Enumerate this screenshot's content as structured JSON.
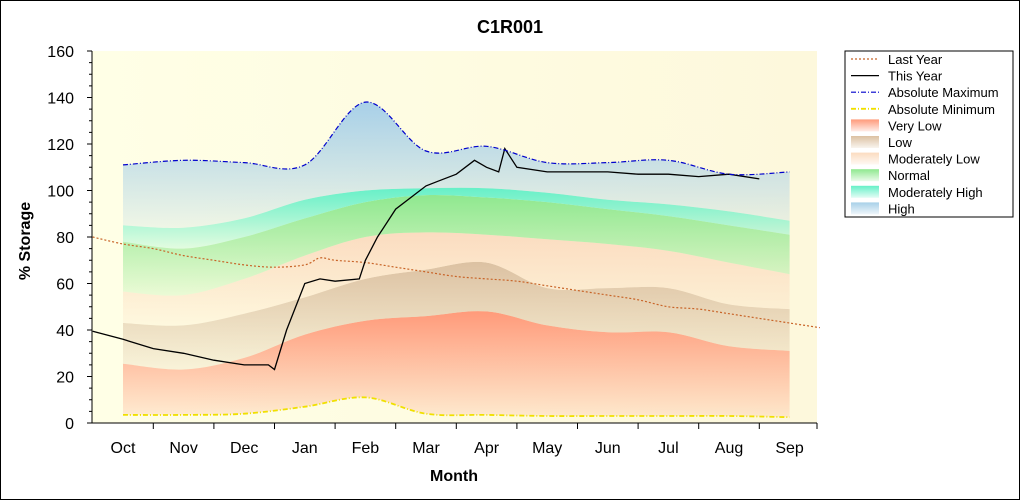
{
  "chart_data": {
    "type": "area",
    "title": "C1R001",
    "xlabel": "Month",
    "ylabel": "% Storage",
    "ylim": [
      0,
      160
    ],
    "yticks": [
      0,
      20,
      40,
      60,
      80,
      100,
      120,
      140,
      160
    ],
    "months": [
      "Oct",
      "Nov",
      "Dec",
      "Jan",
      "Feb",
      "Mar",
      "Apr",
      "May",
      "Jun",
      "Jul",
      "Aug",
      "Sep"
    ],
    "legend_position": "right",
    "bands": [
      {
        "name": "Very Low",
        "color": "#ff9a7a",
        "lower_key": "abs_min",
        "upper_key": "very_low_top"
      },
      {
        "name": "Low",
        "color": "#dcc1a2",
        "lower_key": "very_low_top",
        "upper_key": "low_top"
      },
      {
        "name": "Moderately Low",
        "color": "#fbdcc0",
        "lower_key": "low_top",
        "upper_key": "mod_low_top"
      },
      {
        "name": "Normal",
        "color": "#8fe88f",
        "lower_key": "mod_low_top",
        "upper_key": "normal_top"
      },
      {
        "name": "Moderately High",
        "color": "#66f0c8",
        "lower_key": "normal_top",
        "upper_key": "mod_high_top"
      },
      {
        "name": "High",
        "color": "#a8d0e8",
        "lower_key": "mod_high_top",
        "upper_key": "abs_max"
      }
    ],
    "band_x": [
      0,
      1,
      2,
      3,
      4,
      5,
      6,
      7,
      8,
      9,
      10,
      11
    ],
    "band_values": {
      "abs_min": [
        3.5,
        3.5,
        4,
        7,
        11,
        4,
        3.5,
        3,
        3,
        3,
        3,
        2.5
      ],
      "very_low_top": [
        25.5,
        23,
        28,
        38,
        44,
        46,
        48,
        42,
        39,
        39,
        33,
        31
      ],
      "low_top": [
        43,
        42,
        47,
        54,
        62,
        66,
        69,
        58,
        58,
        58,
        51,
        49
      ],
      "mod_low_top": [
        56.5,
        55,
        62,
        72,
        80,
        82,
        81,
        79,
        77,
        74,
        69,
        64
      ],
      "normal_top": [
        78,
        75,
        80,
        88,
        95,
        98,
        97,
        95,
        92,
        89,
        85,
        81
      ],
      "mod_high_top": [
        85,
        84,
        88,
        96,
        100,
        101,
        101,
        99,
        96,
        94,
        91,
        87
      ],
      "abs_max": [
        111,
        113,
        112,
        111,
        138,
        117,
        119,
        112,
        112,
        113,
        107,
        108
      ]
    },
    "series": [
      {
        "name": "Last Year",
        "color": "#c86428",
        "style": "dotted",
        "x": [
          -0.5,
          0,
          0.5,
          1,
          1.5,
          2,
          2.5,
          3,
          3.25,
          3.5,
          4,
          4.5,
          5,
          5.5,
          6,
          6.5,
          7,
          7.5,
          8,
          8.5,
          9,
          9.5,
          10,
          10.5,
          11,
          11.5
        ],
        "y": [
          80,
          77,
          75,
          72,
          70,
          68,
          67,
          68,
          71,
          70,
          69,
          67,
          65,
          63,
          62,
          61,
          59,
          57,
          55,
          53,
          50,
          49,
          47,
          45,
          43,
          41
        ]
      },
      {
        "name": "This Year",
        "color": "#000000",
        "style": "solid",
        "x": [
          -0.5,
          0,
          0.5,
          1,
          1.5,
          2,
          2.4,
          2.5,
          2.7,
          3,
          3.25,
          3.5,
          3.9,
          4,
          4.2,
          4.5,
          5,
          5.2,
          5.5,
          5.8,
          6,
          6.2,
          6.3,
          6.5,
          7,
          7.5,
          8,
          8.5,
          9,
          9.5,
          10,
          10.5
        ],
        "y": [
          39.5,
          36,
          32,
          30,
          27,
          25,
          25,
          23,
          40,
          60,
          62,
          61,
          62,
          70,
          80,
          92,
          102,
          104,
          107,
          113,
          110,
          108,
          118,
          110,
          108,
          108,
          108,
          107,
          107,
          106,
          107,
          105
        ]
      },
      {
        "name": "Absolute Maximum",
        "color": "#0000cc",
        "style": "dashdot",
        "x": [
          0,
          1,
          2,
          3,
          4,
          5,
          6,
          7,
          8,
          9,
          10,
          11
        ],
        "y": [
          111,
          113,
          112,
          111,
          138,
          117,
          119,
          112,
          112,
          113,
          107,
          108
        ]
      },
      {
        "name": "Absolute Minimum",
        "color": "#f0e000",
        "style": "dashdot",
        "x": [
          0,
          1,
          2,
          3,
          4,
          5,
          6,
          7,
          8,
          9,
          10,
          11
        ],
        "y": [
          3.5,
          3.5,
          4,
          7,
          11,
          4,
          3.5,
          3,
          3,
          3,
          3,
          2.5
        ]
      }
    ],
    "legend": [
      "Last Year",
      "This Year",
      "Absolute Maximum",
      "Absolute Minimum",
      "Very Low",
      "Low",
      "Moderately Low",
      "Normal",
      "Moderately High",
      "High"
    ]
  }
}
